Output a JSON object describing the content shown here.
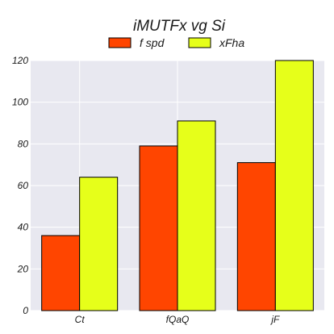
{
  "chart_data": {
    "type": "bar",
    "title": "iMUTFx vg Si",
    "categories": [
      "Ct",
      "fQaQ",
      "jF"
    ],
    "series": [
      {
        "name": "f spd",
        "values": [
          36,
          79,
          71
        ],
        "color": "#ff4500"
      },
      {
        "name": "xFha",
        "values": [
          64,
          91,
          120
        ],
        "color": "#e6ff1a"
      }
    ],
    "xlabel": "",
    "ylabel": "",
    "ylim": [
      0,
      120
    ],
    "yticks": [
      0,
      20,
      40,
      60,
      80,
      100,
      120
    ],
    "grid": true,
    "legend": "top-center",
    "plot_background": "#e8e8f0",
    "bar_edge_color": "#000000"
  }
}
